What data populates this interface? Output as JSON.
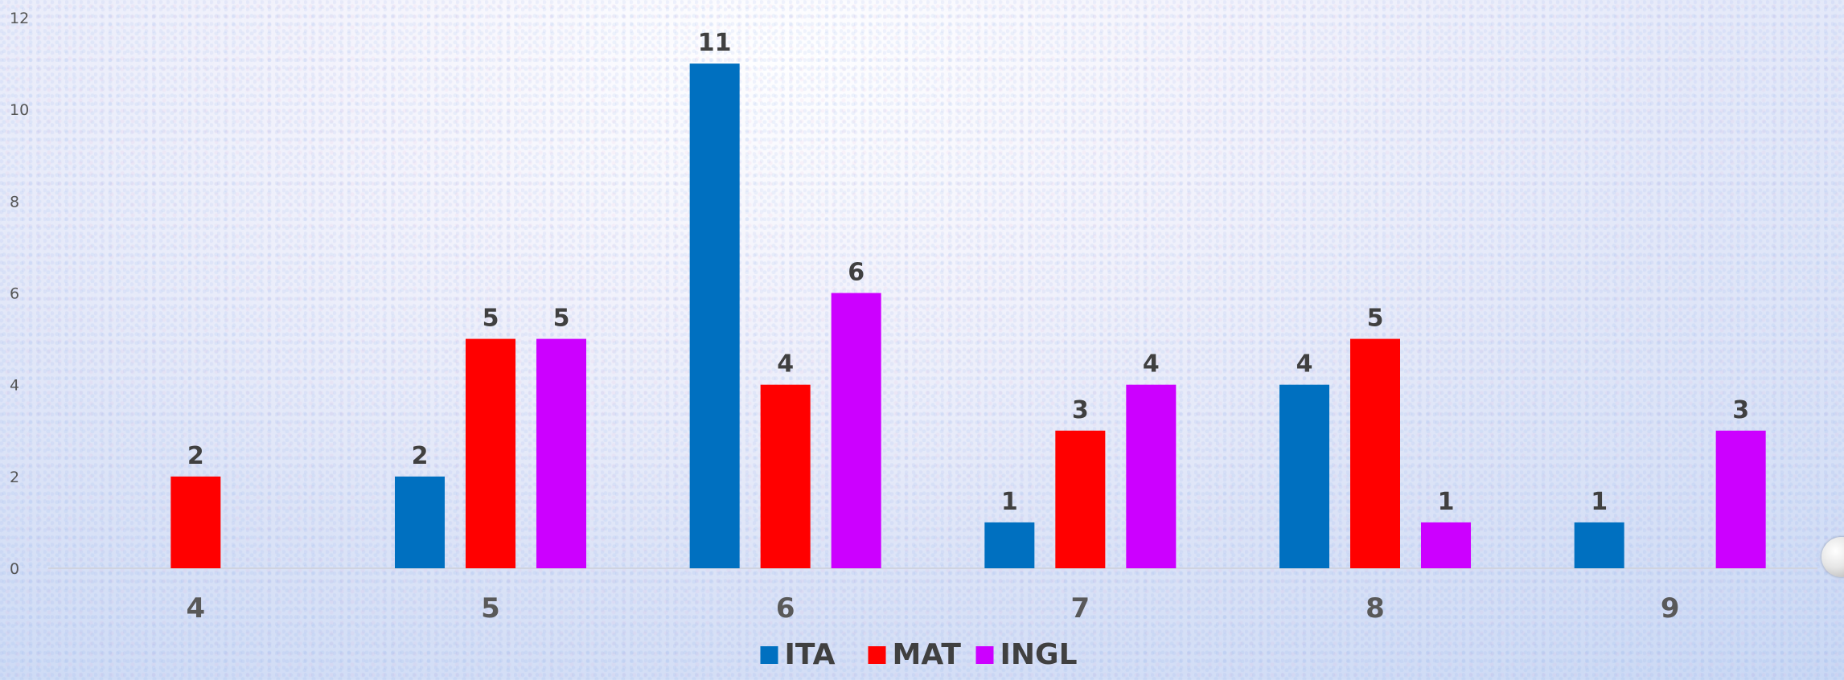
{
  "chart_data": {
    "type": "bar",
    "categories": [
      "4",
      "5",
      "6",
      "7",
      "8",
      "9"
    ],
    "series": [
      {
        "name": "ITA",
        "values": [
          0,
          2,
          11,
          1,
          4,
          1
        ],
        "color": "#0070C0"
      },
      {
        "name": "MAT",
        "values": [
          2,
          5,
          4,
          3,
          5,
          0
        ],
        "color": "#FF0000"
      },
      {
        "name": "INGL",
        "values": [
          0,
          5,
          6,
          4,
          1,
          3
        ],
        "color": "#CC00FF"
      }
    ],
    "ylim": [
      0,
      12
    ],
    "yticks": [
      "0",
      "2",
      "4",
      "6",
      "8",
      "10",
      "12"
    ],
    "title": "",
    "xlabel": "",
    "ylabel": "",
    "legend": "bottom",
    "grid": false,
    "data_labels": true
  }
}
